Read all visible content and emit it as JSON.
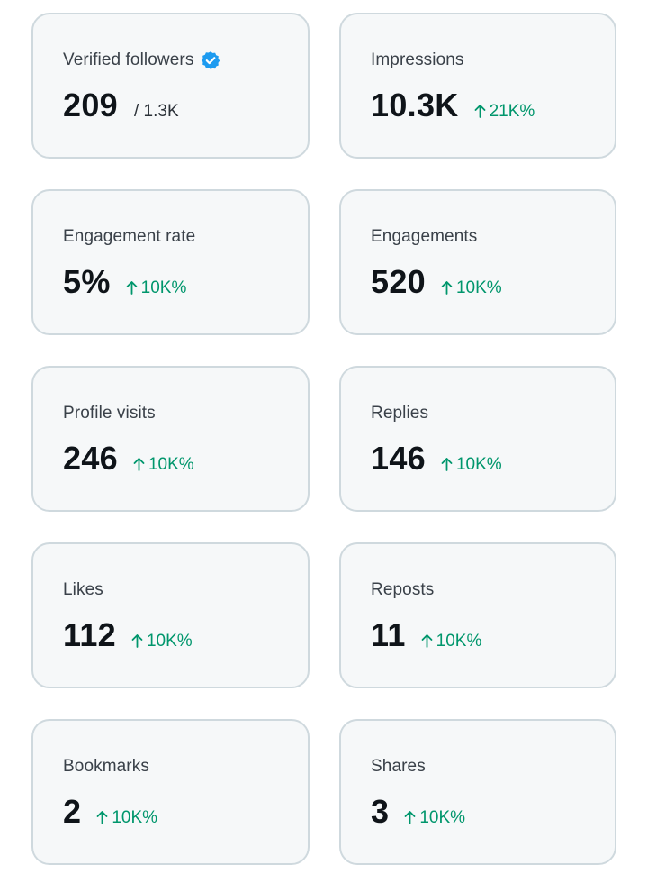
{
  "colors": {
    "card_background": "#f6f8f9",
    "card_border": "#cfd9de",
    "value_text": "#0f1419",
    "label_text": "#3a4149",
    "positive_delta": "#00966c",
    "verified_badge": "#1d9bf0"
  },
  "cards": [
    {
      "label": "Verified followers",
      "value": "209",
      "sub": "/ 1.3K",
      "verified": true,
      "badge_icon": "verified-badge-icon"
    },
    {
      "label": "Impressions",
      "value": "10.3K",
      "delta": "21K%",
      "delta_icon": "arrow-up-icon"
    },
    {
      "label": "Engagement rate",
      "value": "5%",
      "delta": "10K%",
      "delta_icon": "arrow-up-icon"
    },
    {
      "label": "Engagements",
      "value": "520",
      "delta": "10K%",
      "delta_icon": "arrow-up-icon"
    },
    {
      "label": "Profile visits",
      "value": "246",
      "delta": "10K%",
      "delta_icon": "arrow-up-icon"
    },
    {
      "label": "Replies",
      "value": "146",
      "delta": "10K%",
      "delta_icon": "arrow-up-icon"
    },
    {
      "label": "Likes",
      "value": "112",
      "delta": "10K%",
      "delta_icon": "arrow-up-icon"
    },
    {
      "label": "Reposts",
      "value": "11",
      "delta": "10K%",
      "delta_icon": "arrow-up-icon"
    },
    {
      "label": "Bookmarks",
      "value": "2",
      "delta": "10K%",
      "delta_icon": "arrow-up-icon"
    },
    {
      "label": "Shares",
      "value": "3",
      "delta": "10K%",
      "delta_icon": "arrow-up-icon"
    }
  ]
}
